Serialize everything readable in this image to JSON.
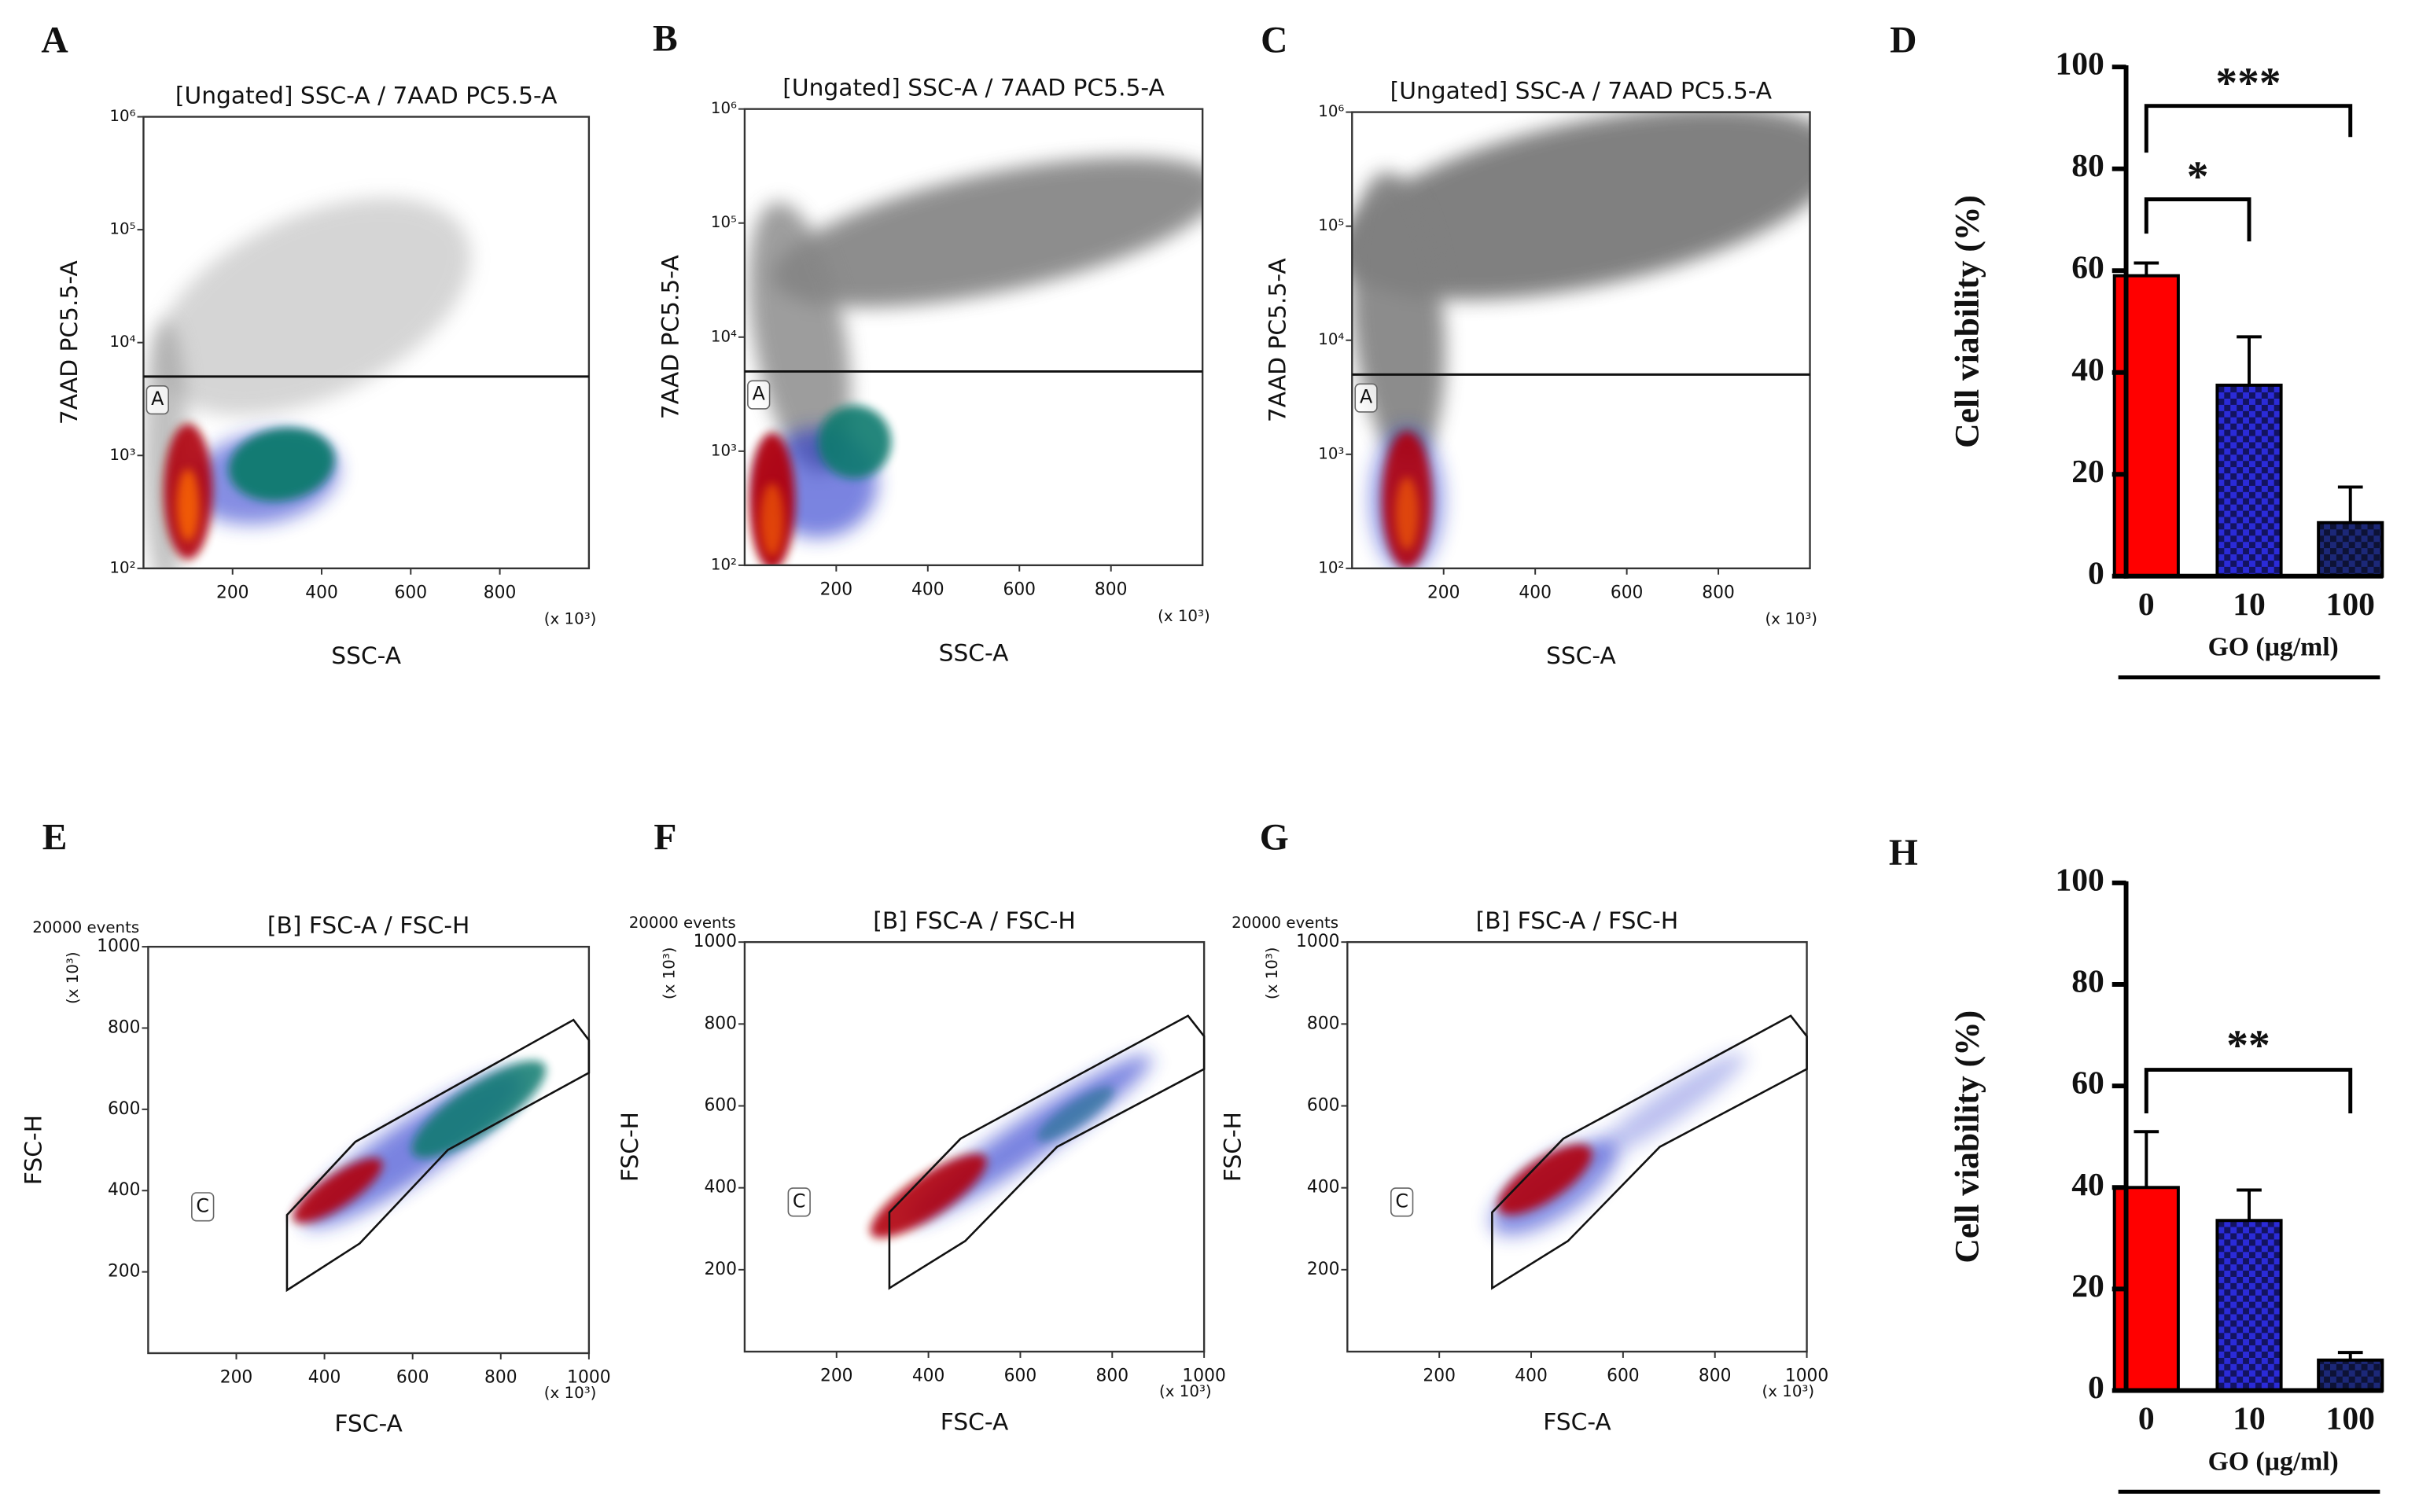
{
  "chart_data": [
    {
      "type": "scatter",
      "panel": "A",
      "title": "[Ungated] SSC-A / 7AAD PC5.5-A",
      "xlabel": "SSC-A",
      "ylabel": "7AAD PC5.5-A",
      "x_unit": "(x 10³)",
      "xlim": [
        0,
        1000
      ],
      "xticks": [
        200,
        400,
        600,
        800
      ],
      "ylim": [
        100,
        1000000
      ],
      "yscale": "log",
      "yticks": [
        {
          "value": 100,
          "label": "10²"
        },
        {
          "value": 1000,
          "label": "10³"
        },
        {
          "value": 10000,
          "label": "10⁴"
        },
        {
          "value": 100000,
          "label": "10⁵"
        },
        {
          "value": 1000000,
          "label": "10⁶"
        }
      ],
      "gate": {
        "label": "A",
        "value": 5000
      }
    },
    {
      "type": "scatter",
      "panel": "B",
      "title": "[Ungated] SSC-A / 7AAD PC5.5-A",
      "xlabel": "SSC-A",
      "ylabel": "7AAD PC5.5-A",
      "x_unit": "(x 10³)",
      "xlim": [
        0,
        1000
      ],
      "xticks": [
        200,
        400,
        600,
        800
      ],
      "ylim": [
        100,
        1000000
      ],
      "yscale": "log",
      "yticks": [
        {
          "value": 100,
          "label": "10²"
        },
        {
          "value": 1000,
          "label": "10³"
        },
        {
          "value": 10000,
          "label": "10⁴"
        },
        {
          "value": 100000,
          "label": "10⁵"
        },
        {
          "value": 1000000,
          "label": "10⁶"
        }
      ],
      "gate": {
        "label": "A",
        "value": 5000
      }
    },
    {
      "type": "scatter",
      "panel": "C",
      "title": "[Ungated] SSC-A / 7AAD PC5.5-A",
      "xlabel": "SSC-A",
      "ylabel": "7AAD PC5.5-A",
      "x_unit": "(x 10³)",
      "xlim": [
        0,
        1000
      ],
      "xticks": [
        200,
        400,
        600,
        800
      ],
      "ylim": [
        100,
        1000000
      ],
      "yscale": "log",
      "yticks": [
        {
          "value": 100,
          "label": "10²"
        },
        {
          "value": 1000,
          "label": "10³"
        },
        {
          "value": 10000,
          "label": "10⁴"
        },
        {
          "value": 100000,
          "label": "10⁵"
        },
        {
          "value": 1000000,
          "label": "10⁶"
        }
      ],
      "gate": {
        "label": "A",
        "value": 5000
      }
    },
    {
      "type": "bar",
      "panel": "D",
      "ylabel": "Cell viability (%)",
      "xlabel": "GO (µg/ml)",
      "categories": [
        "0",
        "10",
        "100"
      ],
      "values": [
        59,
        37.5,
        10.5
      ],
      "errors": [
        2.5,
        9.5,
        7
      ],
      "colors": [
        "#ff0000",
        "#2b2bd8",
        "#1c2878"
      ],
      "ylim": [
        0,
        100
      ],
      "yticks": [
        0,
        20,
        40,
        60,
        80,
        100
      ],
      "annotations": [
        "***",
        "*"
      ]
    },
    {
      "type": "scatter",
      "panel": "E",
      "title": "[B] FSC-A / FSC-H",
      "events": "20000 events",
      "xlabel": "FSC-A",
      "ylabel": "FSC-H",
      "x_unit": "(x 10³)",
      "y_unit": "(x 10³)",
      "xlim": [
        0,
        1000
      ],
      "xticks": [
        200,
        400,
        600,
        800,
        1000
      ],
      "ylim": [
        0,
        1000
      ],
      "yticks": [
        200,
        400,
        600,
        800,
        1000
      ],
      "gate": {
        "label": "C"
      }
    },
    {
      "type": "scatter",
      "panel": "F",
      "title": "[B] FSC-A / FSC-H",
      "events": "20000 events",
      "xlabel": "FSC-A",
      "ylabel": "FSC-H",
      "x_unit": "(x 10³)",
      "y_unit": "(x 10³)",
      "xlim": [
        0,
        1000
      ],
      "xticks": [
        200,
        400,
        600,
        800,
        1000
      ],
      "ylim": [
        0,
        1000
      ],
      "yticks": [
        200,
        400,
        600,
        800,
        1000
      ],
      "gate": {
        "label": "C"
      }
    },
    {
      "type": "scatter",
      "panel": "G",
      "title": "[B] FSC-A / FSC-H",
      "events": "20000 events",
      "xlabel": "FSC-A",
      "ylabel": "FSC-H",
      "x_unit": "(x 10³)",
      "y_unit": "(x 10³)",
      "xlim": [
        0,
        1000
      ],
      "xticks": [
        200,
        400,
        600,
        800,
        1000
      ],
      "ylim": [
        0,
        1000
      ],
      "yticks": [
        200,
        400,
        600,
        800,
        1000
      ],
      "gate": {
        "label": "C"
      }
    },
    {
      "type": "bar",
      "panel": "H",
      "ylabel": "Cell viability (%)",
      "xlabel": "GO (µg/ml)",
      "categories": [
        "0",
        "10",
        "100"
      ],
      "values": [
        40,
        33.5,
        6
      ],
      "errors": [
        11,
        6,
        1.5
      ],
      "colors": [
        "#ff0000",
        "#2b2bd8",
        "#1c2878"
      ],
      "ylim": [
        0,
        100
      ],
      "yticks": [
        0,
        20,
        40,
        60,
        80,
        100
      ],
      "annotations": [
        "**"
      ]
    }
  ]
}
